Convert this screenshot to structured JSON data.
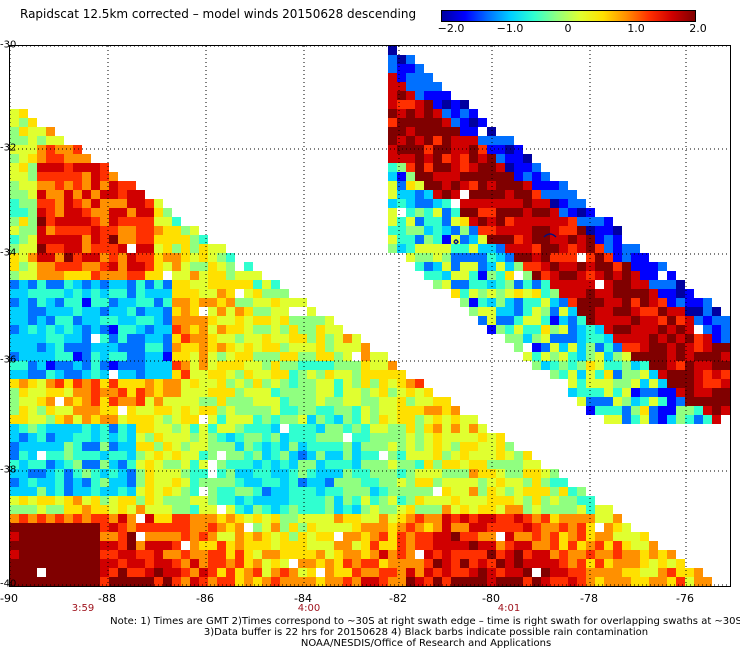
{
  "title": "Rapidscat 12.5km corrected – model winds 20150628 descending",
  "colorbar": {
    "ticks": [
      "−2.0",
      "−1.0",
      "0",
      "1.0",
      "2.0"
    ],
    "range": [
      -2.0,
      2.0
    ],
    "colors": [
      "#0000a0",
      "#0000ff",
      "#0070ff",
      "#00d0ff",
      "#30ffd0",
      "#90ff80",
      "#e0ff30",
      "#ffe000",
      "#ff9000",
      "#ff3000",
      "#d00000",
      "#800000"
    ]
  },
  "map": {
    "lat_labels": [
      "-30",
      "-32",
      "-34",
      "-36",
      "-38",
      "-40"
    ],
    "lon_labels": [
      "-90",
      "-88",
      "-86",
      "-84",
      "-82",
      "-80",
      "-78",
      "-76"
    ],
    "time_labels": [
      "3:59",
      "4:00",
      "4:01"
    ]
  },
  "notes": [
    "Note: 1) Times are GMT 2)Times correspond to ~30S at right swath edge – time is right swath for overlapping swaths at ~30S",
    "3)Data buffer is 22 hrs for 20150628 4) Black barbs indicate possible rain contamination",
    "NOAA/NESDIS/Office of Research and Applications"
  ]
}
